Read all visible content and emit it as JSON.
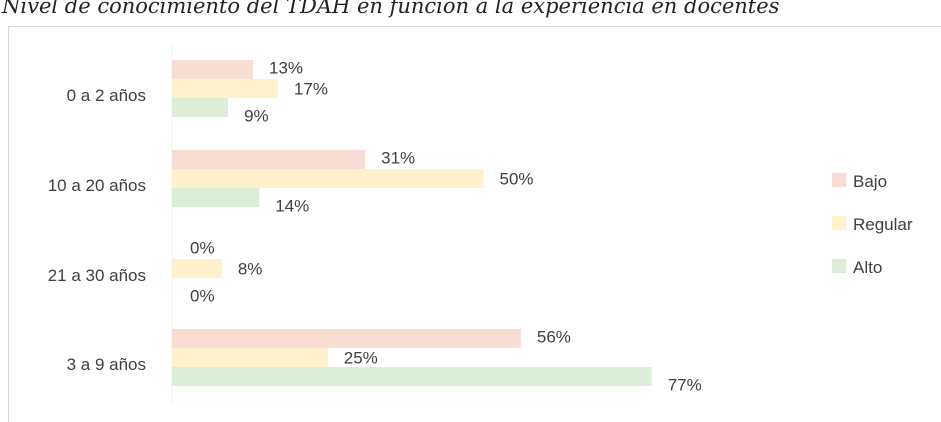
{
  "chart_data": {
    "type": "bar",
    "orientation": "horizontal",
    "title": "Nivel de conocimiento del TDAH en función a la experiencia en docentes",
    "categories": [
      "0 a 2 años",
      "10 a 20 años",
      "21 a 30 años",
      "3 a 9 años"
    ],
    "series": [
      {
        "name": "Bajo",
        "color": "#f8ddd4",
        "values": [
          13,
          31,
          0,
          56
        ],
        "labels": [
          "13%",
          "31%",
          "0%",
          "56%"
        ]
      },
      {
        "name": "Regular",
        "color": "#fff1cc",
        "values": [
          17,
          50,
          8,
          25
        ],
        "labels": [
          "17%",
          "50%",
          "8%",
          "25%"
        ]
      },
      {
        "name": "Alto",
        "color": "#dcedd8",
        "values": [
          9,
          14,
          0,
          77
        ],
        "labels": [
          "9%",
          "14%",
          "0%",
          "77%"
        ]
      }
    ],
    "value_unit": "%",
    "legend_position": "right",
    "grid": false,
    "xlim": [
      0,
      100
    ]
  }
}
